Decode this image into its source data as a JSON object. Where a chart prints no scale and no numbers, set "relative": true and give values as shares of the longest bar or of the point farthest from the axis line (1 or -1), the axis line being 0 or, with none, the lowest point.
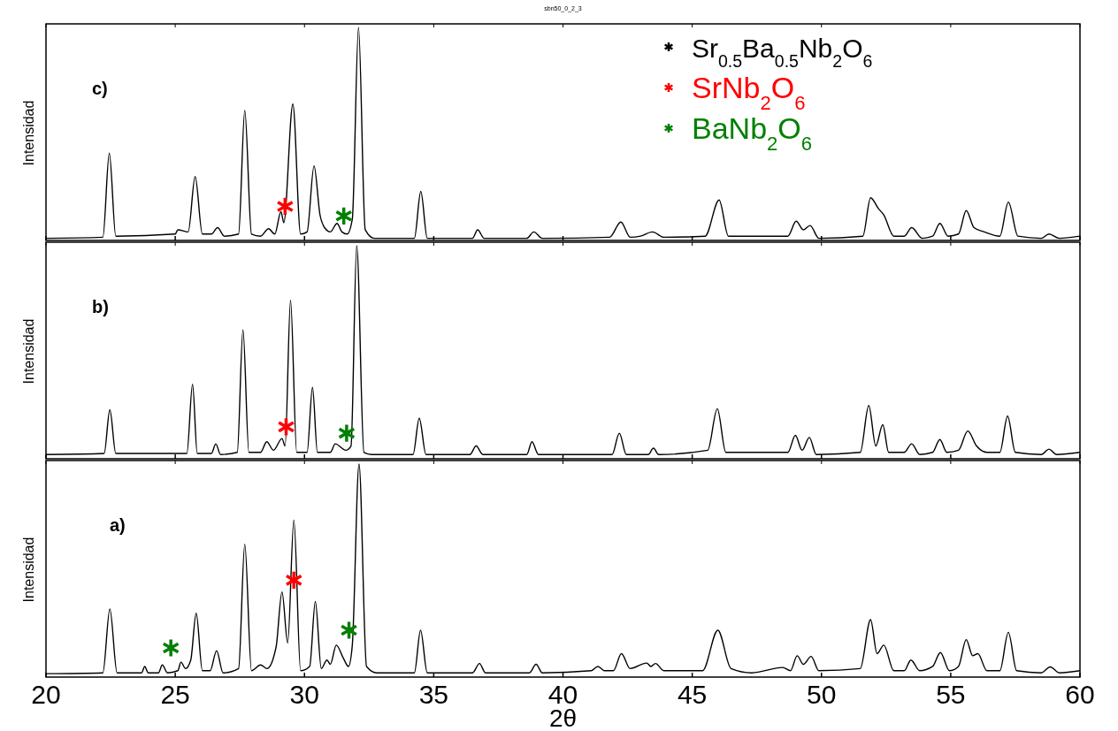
{
  "chart_data": [
    {
      "type": "line",
      "relative": true,
      "title": "sbn50_0_2_3",
      "ylabel": "Intensidad",
      "annotations": [
        "c)"
      ],
      "xlim": [
        20,
        60
      ],
      "xticks": [
        20,
        25,
        30,
        35,
        40,
        45,
        50,
        55,
        60
      ],
      "tick_labels": false,
      "legend": "top right",
      "series": [
        {
          "name": "Sr$_{0.5}$Ba$_{0.5}$Nb$_{2}$O$_{6}$",
          "color": "#000000",
          "x": [
            20.0,
            22.2,
            22.45,
            22.7,
            25.0,
            25.1,
            25.5,
            25.77,
            26.05,
            26.4,
            26.64,
            26.9,
            27.45,
            27.69,
            27.95,
            28.3,
            28.61,
            28.85,
            29.09,
            29.2,
            29.55,
            29.85,
            30.1,
            30.37,
            30.6,
            30.8,
            31.0,
            31.26,
            31.45,
            31.65,
            31.85,
            32.09,
            32.35,
            32.7,
            34.25,
            34.5,
            34.75,
            36.5,
            36.7,
            36.95,
            38.6,
            38.87,
            39.2,
            41.8,
            42.24,
            42.6,
            43.0,
            43.46,
            43.9,
            45.5,
            46.04,
            46.4,
            48.7,
            49.02,
            49.3,
            49.56,
            49.9,
            51.6,
            51.9,
            52.2,
            52.41,
            52.8,
            53.2,
            53.49,
            53.9,
            54.3,
            54.58,
            54.9,
            55.3,
            55.6,
            55.9,
            56.3,
            56.9,
            57.23,
            57.6,
            58.5,
            58.8,
            59.2,
            60.0
          ],
          "values": [
            0.01,
            0.015,
            0.41,
            0.02,
            0.03,
            0.05,
            0.04,
            0.3,
            0.03,
            0.03,
            0.06,
            0.02,
            0.03,
            0.61,
            0.03,
            0.02,
            0.055,
            0.03,
            0.135,
            0.083,
            0.64,
            0.03,
            0.04,
            0.35,
            0.12,
            0.056,
            0.04,
            0.08,
            0.04,
            0.03,
            0.1,
            1,
            0.05,
            0.01,
            0.01,
            0.23,
            0.01,
            0.01,
            0.05,
            0.01,
            0.01,
            0.04,
            0.01,
            0.015,
            0.086,
            0.015,
            0.02,
            0.04,
            0.015,
            0.02,
            0.19,
            0.02,
            0.02,
            0.09,
            0.05,
            0.07,
            0.01,
            0.02,
            0.2,
            0.15,
            0.12,
            0.02,
            0.02,
            0.06,
            0.01,
            0.02,
            0.08,
            0.02,
            0.03,
            0.14,
            0.06,
            0.04,
            0.02,
            0.18,
            0.02,
            0.01,
            0.03,
            0.01,
            0.02
          ]
        },
        {
          "type": "scatter",
          "name": "SrNb$_{2}$O$_{6}$",
          "color": "#ff0000",
          "marker": "cross",
          "x": [
            29.25
          ],
          "values": [
            0.16
          ]
        },
        {
          "type": "scatter",
          "name": "BaNb$_{2}$O$_{6}$",
          "color": "#008000",
          "marker": "cross",
          "x": [
            31.52
          ],
          "values": [
            0.115
          ]
        }
      ]
    },
    {
      "type": "line",
      "relative": true,
      "ylabel": "Intensidad",
      "annotations": [
        "b)"
      ],
      "xlim": [
        20,
        60
      ],
      "xticks": [
        20,
        25,
        30,
        35,
        40,
        45,
        50,
        55,
        60
      ],
      "tick_labels": false,
      "series": [
        {
          "color": "#000000",
          "x": [
            20.0,
            22.25,
            22.47,
            22.7,
            25.45,
            25.67,
            25.85,
            26.4,
            26.57,
            26.75,
            27.4,
            27.62,
            27.85,
            28.3,
            28.54,
            28.8,
            29.13,
            29.25,
            29.46,
            29.7,
            30.1,
            30.31,
            30.5,
            31.0,
            31.19,
            31.6,
            31.8,
            32.02,
            32.3,
            32.6,
            34.2,
            34.44,
            34.7,
            36.4,
            36.64,
            36.9,
            38.6,
            38.8,
            39.05,
            41.9,
            42.18,
            42.45,
            43.3,
            43.5,
            43.7,
            45.6,
            45.97,
            46.3,
            48.7,
            48.99,
            49.25,
            49.53,
            49.8,
            51.5,
            51.83,
            52.1,
            52.37,
            52.6,
            53.2,
            53.49,
            53.8,
            54.3,
            54.58,
            54.85,
            55.3,
            55.66,
            56.0,
            56.4,
            56.9,
            57.2,
            57.5,
            58.5,
            58.8,
            59.1,
            60.0
          ],
          "values": [
            0.02,
            0.025,
            0.23,
            0.025,
            0.025,
            0.35,
            0.025,
            0.025,
            0.07,
            0.02,
            0.03,
            0.605,
            0.03,
            0.03,
            0.08,
            0.04,
            0.095,
            0.06,
            0.744,
            0.03,
            0.03,
            0.335,
            0.03,
            0.03,
            0.07,
            0.04,
            0.06,
            1,
            0.03,
            0.02,
            0.02,
            0.19,
            0.02,
            0.02,
            0.06,
            0.02,
            0.02,
            0.08,
            0.02,
            0.02,
            0.12,
            0.02,
            0.02,
            0.05,
            0.02,
            0.04,
            0.235,
            0.03,
            0.03,
            0.11,
            0.04,
            0.1,
            0.02,
            0.03,
            0.25,
            0.06,
            0.16,
            0.03,
            0.03,
            0.07,
            0.02,
            0.03,
            0.09,
            0.03,
            0.04,
            0.13,
            0.06,
            0.03,
            0.03,
            0.2,
            0.03,
            0.02,
            0.045,
            0.02,
            0.03
          ]
        },
        {
          "type": "scatter",
          "color": "#ff0000",
          "marker": "cross",
          "x": [
            29.29
          ],
          "values": [
            0.15
          ]
        },
        {
          "type": "scatter",
          "color": "#008000",
          "marker": "cross",
          "x": [
            31.63
          ],
          "values": [
            0.12
          ]
        }
      ]
    },
    {
      "type": "line",
      "relative": true,
      "ylabel": "Intensidad",
      "xlabel": "2θ",
      "annotations": [
        "a)"
      ],
      "xlim": [
        20,
        60
      ],
      "xticks": [
        20,
        25,
        30,
        35,
        40,
        45,
        50,
        55,
        60
      ],
      "tick_labels": "x",
      "series": [
        {
          "color": "#000000",
          "x": [
            20.0,
            22.2,
            22.47,
            22.75,
            23.7,
            23.82,
            23.95,
            24.35,
            24.5,
            24.7,
            25.1,
            25.22,
            25.4,
            25.6,
            25.81,
            26.05,
            26.35,
            26.6,
            26.85,
            27.45,
            27.69,
            27.95,
            28.3,
            28.55,
            28.9,
            29.13,
            29.35,
            29.59,
            29.85,
            30.2,
            30.42,
            30.65,
            30.87,
            31.0,
            31.23,
            31.5,
            31.7,
            31.85,
            32.11,
            32.4,
            32.8,
            34.25,
            34.49,
            34.75,
            36.5,
            36.77,
            37.0,
            38.7,
            38.96,
            39.2,
            41.1,
            41.35,
            41.6,
            41.95,
            42.26,
            42.6,
            43.24,
            43.4,
            43.58,
            43.9,
            45.4,
            45.99,
            46.5,
            47.3,
            48.5,
            48.8,
            49.06,
            49.3,
            49.6,
            49.9,
            51.5,
            51.9,
            52.15,
            52.41,
            52.8,
            53.2,
            53.46,
            53.8,
            54.3,
            54.6,
            54.95,
            55.3,
            55.6,
            55.85,
            56.05,
            56.4,
            56.9,
            57.23,
            57.55,
            58.5,
            58.85,
            59.2,
            60.0
          ],
          "values": [
            0.016,
            0.02,
            0.32,
            0.02,
            0.02,
            0.05,
            0.02,
            0.02,
            0.057,
            0.02,
            0.03,
            0.07,
            0.04,
            0.08,
            0.3,
            0.03,
            0.03,
            0.124,
            0.02,
            0.04,
            0.624,
            0.03,
            0.057,
            0.04,
            0.14,
            0.4,
            0.16,
            0.737,
            0.03,
            0.05,
            0.355,
            0.04,
            0.08,
            0.06,
            0.15,
            0.09,
            0.05,
            0.15,
            1,
            0.05,
            0.02,
            0.02,
            0.22,
            0.02,
            0.02,
            0.064,
            0.02,
            0.02,
            0.06,
            0.02,
            0.03,
            0.05,
            0.03,
            0.03,
            0.11,
            0.04,
            0.066,
            0.05,
            0.064,
            0.03,
            0.03,
            0.22,
            0.04,
            0.02,
            0.045,
            0.03,
            0.1,
            0.06,
            0.097,
            0.03,
            0.04,
            0.27,
            0.11,
            0.15,
            0.03,
            0.03,
            0.08,
            0.03,
            0.05,
            0.115,
            0.03,
            0.05,
            0.176,
            0.1,
            0.11,
            0.03,
            0.03,
            0.21,
            0.03,
            0.02,
            0.048,
            0.02,
            0.03
          ]
        },
        {
          "type": "scatter",
          "color": "#008000",
          "marker": "cross",
          "x": [
            24.83,
            31.72
          ],
          "values": [
            0.137,
            0.22
          ]
        },
        {
          "type": "scatter",
          "color": "#ff0000",
          "marker": "cross",
          "x": [
            29.59
          ],
          "values": [
            0.455
          ]
        }
      ]
    }
  ]
}
